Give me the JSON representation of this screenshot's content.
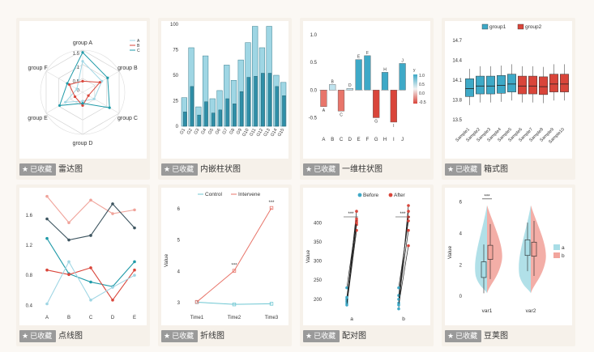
{
  "cards": [
    {
      "title": "雷达图",
      "fav_label": "已收藏"
    },
    {
      "title": "内嵌柱状图",
      "fav_label": "已收藏"
    },
    {
      "title": "一维柱状图",
      "fav_label": "已收藏"
    },
    {
      "title": "箱式图",
      "fav_label": "已收藏"
    },
    {
      "title": "点线图",
      "fav_label": "已收藏"
    },
    {
      "title": "折线图",
      "fav_label": "已收藏"
    },
    {
      "title": "配对图",
      "fav_label": "已收藏"
    },
    {
      "title": "豆荚图",
      "fav_label": "已收藏"
    }
  ],
  "colors": {
    "teal": "#1f9aa8",
    "salmon": "#e8756a",
    "red": "#d9453a",
    "lightblue": "#9fd6e4",
    "blue": "#3ea9c7"
  },
  "chart_data": [
    {
      "type": "radar",
      "axes": [
        "group A",
        "group B",
        "group C",
        "group D",
        "group E",
        "group F"
      ],
      "ticks": [
        "1.5",
        "1",
        "0.5",
        "0"
      ],
      "series": [
        {
          "name": "A",
          "values": [
            1.4,
            1.0,
            0.6,
            0.4,
            0.9,
            0.3
          ]
        },
        {
          "name": "B",
          "values": [
            0.5,
            0.9,
            0.3,
            0.6,
            0.4,
            0.7
          ]
        },
        {
          "name": "C",
          "values": [
            1.8,
            1.3,
            1.4,
            0.5,
            1.2,
            0.8
          ]
        }
      ]
    },
    {
      "type": "bar",
      "categories": [
        "G1",
        "G2",
        "G3",
        "G4",
        "G5",
        "G6",
        "G7",
        "G8",
        "G9",
        "G10",
        "G11",
        "G12",
        "G13",
        "G14",
        "G15"
      ],
      "yticks": [
        "0",
        "25",
        "50",
        "75",
        "100"
      ],
      "ylim": [
        0,
        100
      ],
      "series": [
        {
          "values": [
            28,
            77,
            19,
            69,
            27,
            35,
            60,
            45,
            65,
            82,
            98,
            77,
            98,
            50,
            43
          ]
        },
        {
          "values": [
            14,
            39,
            11,
            24,
            13,
            16,
            27,
            22,
            34,
            48,
            49,
            52,
            52,
            39,
            30
          ]
        }
      ]
    },
    {
      "type": "bar",
      "categories": [
        "A",
        "B",
        "C",
        "D",
        "E",
        "F",
        "G",
        "H",
        "I",
        "J"
      ],
      "yticks": [
        "1.0",
        "0.5",
        "0.0",
        "-0.5"
      ],
      "ylim": [
        -0.8,
        1.1
      ],
      "values": [
        -0.3,
        0.1,
        -0.38,
        0.03,
        0.55,
        0.62,
        -0.5,
        0.32,
        -0.58,
        0.48
      ],
      "legend": {
        "title": "y",
        "ticks": [
          "1.0",
          "0.5",
          "0.0",
          "-0.5"
        ]
      }
    },
    {
      "type": "box",
      "categories": [
        "Sample1",
        "Sample2",
        "Sample3",
        "Sample4",
        "Sample5",
        "Sample6",
        "Sample7",
        "Sample8",
        "Sample9",
        "Sample10"
      ],
      "yticks": [
        "14.7",
        "14.4",
        "14.1",
        "13.8",
        "13.5"
      ],
      "ylim": [
        13.4,
        14.75
      ],
      "legend": [
        "group1",
        "group2"
      ],
      "medians": [
        13.97,
        14.01,
        14.01,
        14.02,
        14.04,
        14.01,
        14.01,
        14.0,
        14.04,
        14.04
      ]
    },
    {
      "type": "line",
      "categories": [
        "A",
        "B",
        "C",
        "D",
        "E"
      ],
      "yticks": [
        "1.6",
        "1.2",
        "0.8",
        "0.4"
      ],
      "ylim": [
        0.35,
        1.9
      ],
      "series": [
        {
          "values": [
            1.85,
            1.5,
            1.8,
            1.62,
            1.67
          ]
        },
        {
          "values": [
            1.55,
            1.27,
            1.33,
            1.75,
            1.43
          ]
        },
        {
          "values": [
            1.29,
            0.82,
            0.71,
            0.65,
            0.98
          ]
        },
        {
          "values": [
            0.87,
            0.81,
            0.9,
            0.47,
            0.87
          ]
        },
        {
          "values": [
            0.42,
            0.98,
            0.47,
            0.64,
            0.8
          ]
        }
      ]
    },
    {
      "type": "line",
      "categories": [
        "Time1",
        "Time2",
        "Time3"
      ],
      "yticks": [
        "6",
        "5",
        "4",
        "3"
      ],
      "ylim": [
        2.8,
        6.2
      ],
      "ylabel": "Value",
      "annotations": [
        "***",
        "***"
      ],
      "series": [
        {
          "name": "Control",
          "values": [
            3.02,
            2.95,
            2.97
          ]
        },
        {
          "name": "Intervene",
          "values": [
            3.03,
            4.02,
            6.02
          ]
        }
      ]
    },
    {
      "type": "scatter",
      "categories": [
        "a",
        "b"
      ],
      "yticks": [
        "400",
        "350",
        "300",
        "250",
        "200"
      ],
      "ylim": [
        170,
        445
      ],
      "ylabel": "Value",
      "annotations": [
        "***",
        "***"
      ],
      "series": [
        {
          "name": "Before"
        },
        {
          "name": "After"
        }
      ]
    },
    {
      "type": "violin",
      "categories": [
        "var1",
        "var2"
      ],
      "yticks": [
        "6",
        "4",
        "2",
        "0"
      ],
      "ylim": [
        -0.4,
        6.5
      ],
      "ylabel": "Value",
      "annotations": [
        "***"
      ],
      "legend": [
        "a",
        "b"
      ]
    }
  ]
}
